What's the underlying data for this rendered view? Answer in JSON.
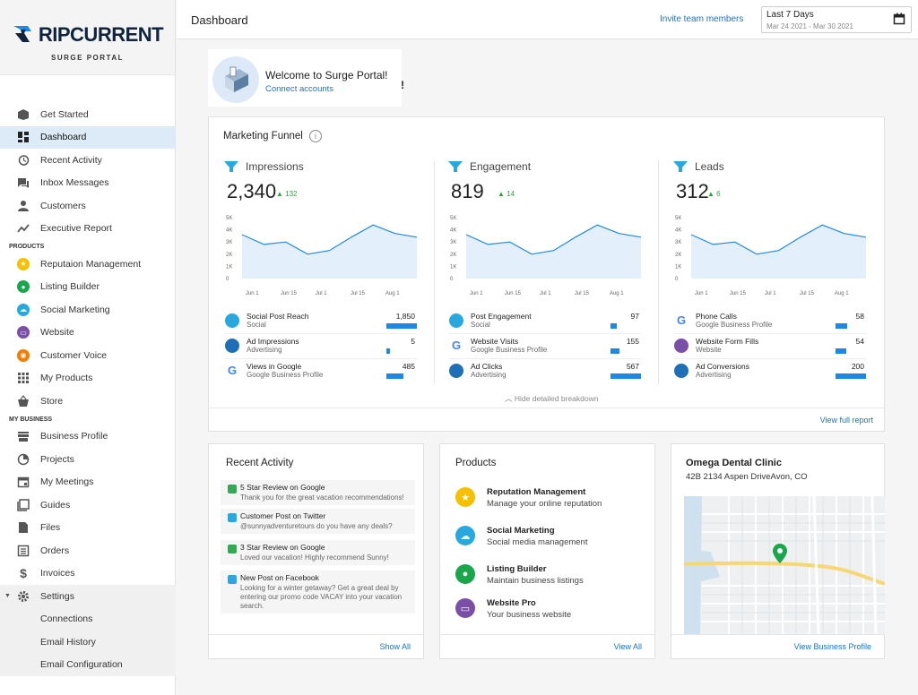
{
  "brand": {
    "name": "RIPCURRENT",
    "subtitle": "SURGE PORTAL"
  },
  "sidebar": {
    "items": [
      {
        "label": "Get Started"
      },
      {
        "label": "Dashboard"
      },
      {
        "label": "Recent Activity"
      },
      {
        "label": "Inbox Messages"
      },
      {
        "label": "Customers"
      },
      {
        "label": "Executive Report"
      }
    ],
    "products_header": "PRODUCTS",
    "products": [
      {
        "label": "Reputaion Management",
        "color": "#f6c000"
      },
      {
        "label": "Listing Builder",
        "color": "#1aa64a"
      },
      {
        "label": "Social Marketing",
        "color": "#29a8e0"
      },
      {
        "label": "Website",
        "color": "#7b4fa8"
      },
      {
        "label": "Customer Voice",
        "color": "#f57c00"
      },
      {
        "label": "My Products"
      },
      {
        "label": "Store"
      }
    ],
    "business_header": "MY BUSINESS",
    "business": [
      {
        "label": "Business Profile"
      },
      {
        "label": "Projects"
      },
      {
        "label": "My Meetings"
      },
      {
        "label": "Guides"
      },
      {
        "label": "Files"
      },
      {
        "label": "Orders"
      },
      {
        "label": "Invoices"
      }
    ],
    "settings": {
      "label": "Settings"
    },
    "settings_sub": [
      {
        "label": "Connections"
      },
      {
        "label": "Email History"
      },
      {
        "label": "Email Configuration"
      }
    ]
  },
  "header": {
    "title": "Dashboard",
    "invite": "Invite team members",
    "date_label": "Last 7 Days",
    "date_range": "Mar 24 2021 - Mar 30 2021"
  },
  "welcome": {
    "title": "Welcome to Surge Portal!",
    "link": "Connect accounts",
    "bang": "!"
  },
  "funnel": {
    "title": "Marketing Funnel",
    "hide_label": "Hide detailed breakdown",
    "view_full": "View full report",
    "y_ticks": [
      "5K",
      "4K",
      "3K",
      "2K",
      "1K",
      "0"
    ],
    "x_ticks": [
      "Jun 1",
      "Jun 15",
      "Jul 1",
      "Jul 15",
      "Aug 1"
    ],
    "series_values": [
      3600,
      2800,
      3000,
      2000,
      2300,
      3400,
      4400,
      3700,
      3400
    ],
    "ylim": [
      0,
      5000
    ],
    "columns": [
      {
        "name": "Impressions",
        "value": "2,340",
        "delta": "132",
        "rows": [
          {
            "name": "Social Post Reach",
            "sub": "Social",
            "value": "1,850",
            "fill": 1.0,
            "icon": "social"
          },
          {
            "name": "Ad Impressions",
            "sub": "Advertising",
            "value": "5",
            "fill": 0.12,
            "icon": "ads"
          },
          {
            "name": "Views in Google",
            "sub": "Google Business Profile",
            "value": "485",
            "fill": 0.55,
            "icon": "google"
          }
        ]
      },
      {
        "name": "Engagement",
        "value": "819",
        "delta": "14",
        "rows": [
          {
            "name": "Post Engagement",
            "sub": "Social",
            "value": "97",
            "fill": 0.2,
            "icon": "social"
          },
          {
            "name": "Website Visits",
            "sub": "Google Business Profile",
            "value": "155",
            "fill": 0.28,
            "icon": "google"
          },
          {
            "name": "Ad Clicks",
            "sub": "Advertising",
            "value": "567",
            "fill": 1.0,
            "icon": "ads"
          }
        ]
      },
      {
        "name": "Leads",
        "value": "312",
        "delta": "6",
        "rows": [
          {
            "name": "Phone Calls",
            "sub": "Google Business Profile",
            "value": "58",
            "fill": 0.38,
            "icon": "google"
          },
          {
            "name": "Website Form Fills",
            "sub": "Website",
            "value": "54",
            "fill": 0.34,
            "icon": "website"
          },
          {
            "name": "Ad Conversions",
            "sub": "Advertising",
            "value": "200",
            "fill": 1.0,
            "icon": "ads"
          }
        ]
      }
    ]
  },
  "recent": {
    "title": "Recent Activity",
    "show_all": "Show All",
    "items": [
      {
        "title": "5 Star Review on Google",
        "text": "Thank you for the great vacation recommendations!",
        "color": "#34a853"
      },
      {
        "title": "Customer Post on Twitter",
        "text": "@sunnyadventuretours do you have any deals?",
        "color": "#29a8e0"
      },
      {
        "title": "3 Star Review on Google",
        "text": "Loved our vacation! Highly recommend Sunny!",
        "color": "#34a853"
      },
      {
        "title": "New Post on Facebook",
        "text": "Looking for a winter getaway? Get a great deal by entering our promo code VACAY into your vacation search.",
        "color": "#29a8e0"
      }
    ]
  },
  "products_card": {
    "title": "Products",
    "view_all": "View All",
    "items": [
      {
        "name": "Reputation Management",
        "desc": "Manage your online reputation",
        "color": "#f6c000",
        "glyph": "★"
      },
      {
        "name": "Social Marketing",
        "desc": "Social media management",
        "color": "#29a8e0",
        "glyph": "☁"
      },
      {
        "name": "Listing Builder",
        "desc": "Maintain business listings",
        "color": "#1aa64a",
        "glyph": "●"
      },
      {
        "name": "Website Pro",
        "desc": "Your business website",
        "color": "#7b4fa8",
        "glyph": "▭"
      }
    ]
  },
  "clinic": {
    "name": "Omega Dental Clinic",
    "address": "42B 2134 Aspen DriveAvon, CO",
    "view": "View Business Profile"
  }
}
